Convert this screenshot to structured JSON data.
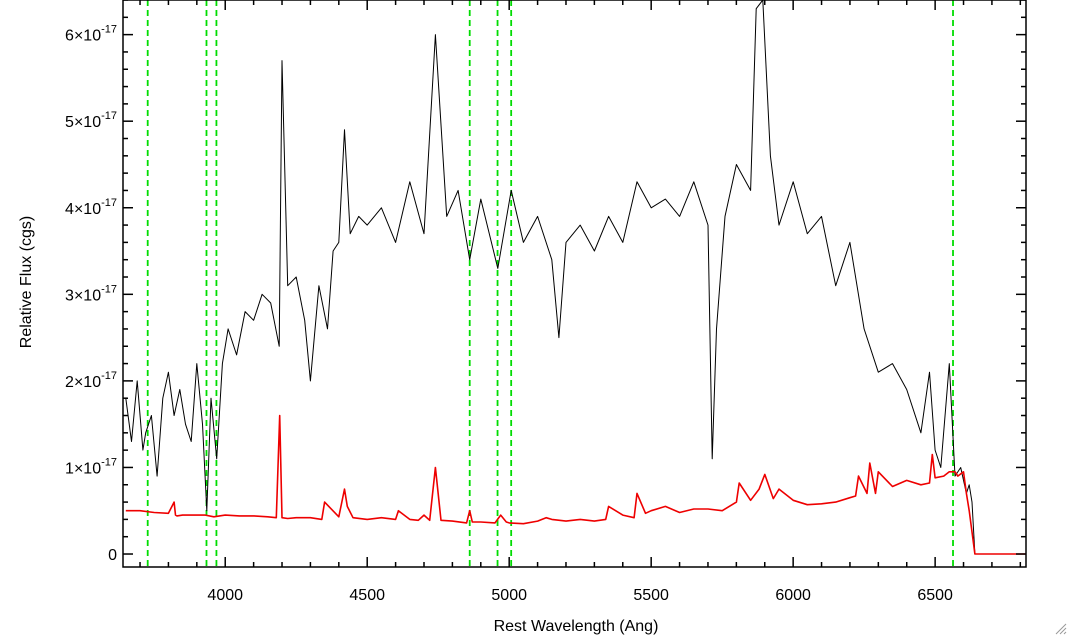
{
  "chart_data": {
    "type": "line",
    "title": "",
    "xlabel": "Rest Wavelength (Ang)",
    "ylabel": "Relative Flux (cgs)",
    "xlim": [
      3640,
      6820
    ],
    "ylim": [
      -0.15,
      6.4
    ],
    "y_exponent": -17,
    "x_ticks": [
      4000,
      4500,
      5000,
      5500,
      6000,
      6500
    ],
    "x_tick_labels": [
      "4000",
      "4500",
      "5000",
      "5500",
      "6000",
      "6500"
    ],
    "y_ticks": [
      0,
      1,
      2,
      3,
      4,
      5,
      6
    ],
    "y_tick_labels": [
      {
        "mantissa": "0",
        "exp": ""
      },
      {
        "mantissa": "1×10",
        "exp": "-17"
      },
      {
        "mantissa": "2×10",
        "exp": "-17"
      },
      {
        "mantissa": "3×10",
        "exp": "-17"
      },
      {
        "mantissa": "4×10",
        "exp": "-17"
      },
      {
        "mantissa": "5×10",
        "exp": "-17"
      },
      {
        "mantissa": "6×10",
        "exp": "-17"
      }
    ],
    "marker_lines": {
      "color": "#00dd00",
      "style": "dashed",
      "x": [
        3727,
        3934,
        3969,
        4861,
        4959,
        5007,
        6563
      ]
    },
    "series": [
      {
        "color": "#000000",
        "x": [
          3650,
          3670,
          3690,
          3710,
          3720,
          3740,
          3760,
          3780,
          3800,
          3820,
          3840,
          3860,
          3880,
          3900,
          3920,
          3935,
          3950,
          3970,
          3990,
          4010,
          4040,
          4070,
          4100,
          4130,
          4160,
          4190,
          4200,
          4220,
          4250,
          4280,
          4300,
          4330,
          4360,
          4380,
          4400,
          4420,
          4440,
          4470,
          4500,
          4550,
          4600,
          4650,
          4700,
          4740,
          4780,
          4820,
          4861,
          4900,
          4960,
          5007,
          5050,
          5100,
          5150,
          5175,
          5200,
          5250,
          5300,
          5350,
          5400,
          5450,
          5500,
          5550,
          5600,
          5650,
          5700,
          5715,
          5730,
          5760,
          5800,
          5850,
          5870,
          5893,
          5920,
          5950,
          6000,
          6050,
          6100,
          6150,
          6200,
          6250,
          6300,
          6350,
          6400,
          6450,
          6480,
          6500,
          6520,
          6550,
          6570,
          6590,
          6610,
          6620,
          6630,
          6640,
          6680,
          6750,
          6820
        ],
        "values": [
          1.8,
          1.3,
          2.0,
          1.2,
          1.4,
          1.6,
          0.9,
          1.8,
          2.1,
          1.6,
          1.9,
          1.5,
          1.3,
          2.2,
          1.5,
          0.5,
          1.8,
          1.1,
          2.2,
          2.6,
          2.3,
          2.8,
          2.7,
          3.0,
          2.9,
          2.4,
          5.7,
          3.1,
          3.2,
          2.7,
          2.0,
          3.1,
          2.6,
          3.5,
          3.6,
          4.9,
          3.7,
          3.9,
          3.8,
          4.0,
          3.6,
          4.3,
          3.7,
          6.0,
          3.9,
          4.2,
          3.4,
          4.1,
          3.3,
          4.2,
          3.6,
          3.9,
          3.4,
          2.5,
          3.6,
          3.8,
          3.5,
          3.9,
          3.6,
          4.3,
          4.0,
          4.1,
          3.9,
          4.3,
          3.8,
          1.1,
          2.6,
          3.9,
          4.5,
          4.2,
          6.3,
          6.4,
          4.6,
          3.8,
          4.3,
          3.7,
          3.9,
          3.1,
          3.6,
          2.6,
          2.1,
          2.2,
          1.9,
          1.4,
          2.1,
          1.2,
          1.0,
          2.2,
          0.9,
          1.0,
          0.7,
          0.8,
          0.6,
          0.0,
          0.0,
          0.0,
          0.0
        ]
      },
      {
        "color": "#ee0000",
        "x": [
          3650,
          3700,
          3750,
          3800,
          3820,
          3825,
          3830,
          3850,
          3900,
          3930,
          3960,
          4000,
          4050,
          4100,
          4150,
          4180,
          4192,
          4200,
          4220,
          4250,
          4300,
          4340,
          4350,
          4400,
          4420,
          4430,
          4450,
          4500,
          4550,
          4600,
          4610,
          4650,
          4680,
          4700,
          4720,
          4740,
          4760,
          4800,
          4850,
          4861,
          4870,
          4900,
          4950,
          4970,
          4990,
          5000,
          5050,
          5100,
          5130,
          5150,
          5200,
          5250,
          5300,
          5340,
          5350,
          5400,
          5440,
          5450,
          5480,
          5500,
          5550,
          5600,
          5650,
          5700,
          5750,
          5800,
          5810,
          5850,
          5880,
          5900,
          5930,
          5950,
          6000,
          6050,
          6100,
          6150,
          6200,
          6220,
          6230,
          6260,
          6270,
          6290,
          6300,
          6350,
          6400,
          6450,
          6480,
          6490,
          6500,
          6530,
          6550,
          6570,
          6580,
          6600,
          6610,
          6620,
          6640,
          6680,
          6750,
          6820
        ],
        "values": [
          0.5,
          0.5,
          0.48,
          0.47,
          0.6,
          0.45,
          0.44,
          0.45,
          0.45,
          0.45,
          0.43,
          0.45,
          0.44,
          0.44,
          0.43,
          0.42,
          1.6,
          0.42,
          0.41,
          0.42,
          0.42,
          0.4,
          0.6,
          0.43,
          0.75,
          0.55,
          0.42,
          0.4,
          0.42,
          0.4,
          0.5,
          0.4,
          0.39,
          0.45,
          0.39,
          1.0,
          0.39,
          0.38,
          0.36,
          0.5,
          0.37,
          0.37,
          0.36,
          0.45,
          0.37,
          0.36,
          0.35,
          0.38,
          0.42,
          0.4,
          0.38,
          0.4,
          0.38,
          0.4,
          0.55,
          0.45,
          0.42,
          0.7,
          0.47,
          0.5,
          0.55,
          0.48,
          0.52,
          0.52,
          0.5,
          0.6,
          0.82,
          0.62,
          0.75,
          0.92,
          0.64,
          0.75,
          0.62,
          0.57,
          0.58,
          0.6,
          0.65,
          0.67,
          0.9,
          0.7,
          1.05,
          0.7,
          0.95,
          0.78,
          0.85,
          0.8,
          0.82,
          1.15,
          0.88,
          0.9,
          0.95,
          0.95,
          0.9,
          0.95,
          0.7,
          0.5,
          0.0,
          0.0,
          0.0,
          0.0
        ]
      }
    ]
  }
}
